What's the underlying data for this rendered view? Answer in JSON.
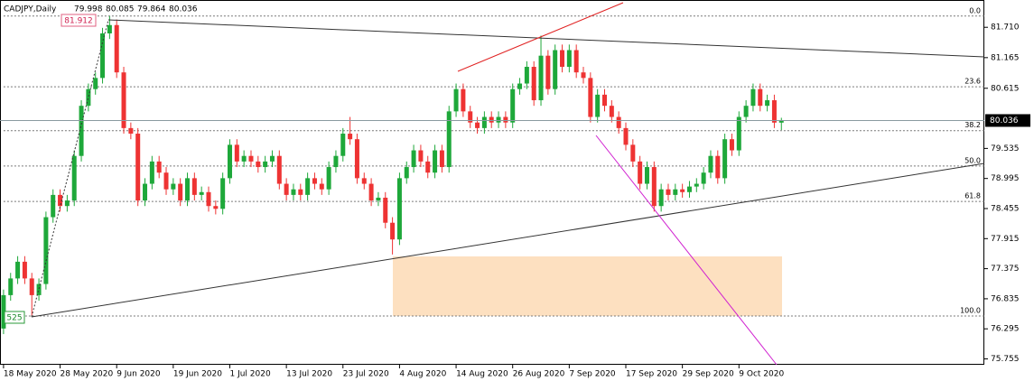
{
  "chart_data": {
    "type": "candlestick",
    "symbol": "CADJPY,Daily",
    "up_color": "#1ea83a",
    "down_color": "#ee3333",
    "open": [
      76.3,
      76.9,
      77.2,
      77.5,
      77.2,
      76.9,
      77.1,
      78.3,
      78.7,
      78.5,
      78.6,
      79.4,
      80.3,
      80.6,
      80.8,
      81.6,
      81.75,
      80.9,
      79.9,
      79.8,
      78.6,
      78.9,
      79.3,
      79.1,
      78.8,
      78.9,
      78.6,
      79.0,
      78.7,
      78.75,
      78.5,
      78.45,
      79.0,
      79.6,
      79.3,
      79.4,
      79.3,
      79.2,
      79.3,
      79.4,
      78.9,
      78.7,
      78.8,
      78.7,
      79.0,
      78.9,
      78.8,
      79.2,
      79.4,
      79.8,
      79.7,
      79.0,
      78.9,
      78.6,
      78.65,
      78.2,
      77.9,
      79.0,
      79.2,
      79.5,
      79.3,
      79.1,
      79.5,
      79.2,
      80.2,
      80.6,
      80.2,
      80.0,
      79.9,
      80.1,
      80.0,
      80.1,
      80.0,
      80.6,
      80.7,
      81.0,
      80.4,
      81.2,
      80.6,
      81.3,
      81.0,
      81.3,
      80.9,
      80.8,
      80.1,
      80.5,
      80.3,
      80.1,
      79.9,
      79.6,
      79.3,
      78.9,
      79.2,
      78.5,
      78.8,
      78.7,
      78.8,
      78.75,
      78.85,
      78.9,
      79.1,
      79.4,
      79.0,
      79.7,
      79.5,
      80.1,
      80.3,
      80.6,
      80.3,
      80.4,
      79.998
    ],
    "high": [
      77.0,
      77.3,
      77.6,
      77.6,
      77.3,
      77.2,
      78.4,
      78.8,
      78.8,
      78.7,
      79.5,
      80.4,
      80.7,
      80.9,
      81.7,
      81.912,
      81.85,
      81.0,
      80.0,
      79.9,
      79.0,
      79.4,
      79.4,
      79.2,
      79.0,
      79.0,
      79.1,
      79.1,
      78.85,
      78.85,
      78.6,
      79.1,
      79.7,
      79.7,
      79.5,
      79.5,
      79.4,
      79.4,
      79.5,
      79.5,
      79.0,
      78.9,
      78.9,
      79.1,
      79.1,
      79.0,
      79.3,
      79.5,
      79.9,
      80.1,
      79.8,
      79.1,
      79.0,
      78.75,
      78.75,
      78.3,
      79.1,
      79.3,
      79.6,
      79.6,
      79.4,
      79.6,
      79.6,
      80.3,
      80.7,
      80.7,
      80.3,
      80.1,
      80.2,
      80.2,
      80.2,
      80.2,
      80.7,
      80.8,
      81.1,
      81.1,
      81.56,
      81.3,
      81.4,
      81.4,
      81.4,
      81.4,
      81.0,
      80.9,
      80.6,
      80.6,
      80.4,
      80.2,
      80.0,
      79.7,
      79.4,
      79.3,
      79.3,
      78.9,
      78.9,
      78.9,
      78.9,
      78.95,
      79.0,
      79.2,
      79.5,
      79.5,
      79.8,
      79.8,
      80.2,
      80.4,
      80.7,
      80.7,
      80.5,
      80.5,
      80.085
    ],
    "low": [
      76.2,
      76.8,
      77.1,
      77.1,
      76.525,
      76.8,
      77.0,
      78.2,
      78.4,
      78.4,
      78.5,
      79.3,
      80.2,
      80.5,
      80.7,
      81.5,
      80.8,
      79.8,
      79.7,
      78.5,
      78.5,
      78.8,
      79.0,
      78.7,
      78.7,
      78.5,
      78.5,
      78.6,
      78.6,
      78.4,
      78.35,
      78.35,
      78.9,
      79.2,
      79.2,
      79.2,
      79.1,
      79.1,
      79.2,
      78.8,
      78.6,
      78.6,
      78.6,
      78.6,
      78.8,
      78.7,
      78.7,
      79.1,
      79.3,
      79.6,
      78.9,
      78.8,
      78.5,
      78.5,
      78.1,
      77.63,
      77.8,
      78.9,
      79.1,
      79.2,
      79.0,
      79.0,
      79.1,
      79.1,
      80.1,
      80.1,
      79.9,
      79.8,
      79.8,
      79.9,
      79.9,
      79.9,
      79.9,
      80.5,
      80.6,
      80.3,
      80.3,
      80.5,
      80.5,
      80.9,
      80.9,
      80.8,
      80.7,
      80.0,
      80.0,
      80.2,
      80.0,
      79.8,
      79.5,
      79.2,
      78.8,
      78.8,
      78.4,
      78.4,
      78.6,
      78.6,
      78.65,
      78.65,
      78.75,
      78.8,
      79.0,
      78.9,
      78.9,
      79.4,
      79.4,
      80.0,
      80.2,
      80.2,
      80.2,
      79.9,
      79.864
    ],
    "close": [
      76.9,
      77.2,
      77.5,
      77.2,
      76.9,
      77.1,
      78.3,
      78.7,
      78.5,
      78.6,
      79.4,
      80.3,
      80.6,
      80.8,
      81.6,
      81.75,
      80.9,
      79.9,
      79.8,
      78.6,
      78.9,
      79.3,
      79.1,
      78.8,
      78.9,
      78.6,
      79.0,
      78.7,
      78.75,
      78.5,
      78.45,
      79.0,
      79.6,
      79.3,
      79.4,
      79.3,
      79.2,
      79.3,
      79.4,
      78.9,
      78.7,
      78.8,
      78.7,
      79.0,
      78.9,
      78.8,
      79.2,
      79.4,
      79.8,
      79.7,
      79.0,
      78.9,
      78.6,
      78.65,
      78.2,
      77.9,
      79.0,
      79.2,
      79.5,
      79.3,
      79.1,
      79.5,
      79.2,
      80.2,
      80.6,
      80.2,
      80.0,
      79.9,
      80.1,
      80.0,
      80.1,
      80.0,
      80.6,
      80.7,
      81.0,
      80.4,
      81.2,
      80.6,
      81.3,
      81.0,
      81.3,
      80.9,
      80.8,
      80.1,
      80.5,
      80.3,
      80.1,
      79.9,
      79.6,
      79.3,
      78.9,
      79.2,
      78.5,
      78.8,
      78.7,
      78.8,
      78.75,
      78.85,
      78.9,
      79.1,
      79.4,
      79.0,
      79.7,
      79.5,
      80.1,
      80.3,
      80.6,
      80.3,
      80.4,
      79.998,
      80.036
    ],
    "xlim": [
      -0.5,
      138.7
    ],
    "ylim": [
      75.65,
      82.2
    ],
    "yticks": [
      {
        "value": 81.71,
        "label": "81.710"
      },
      81.165,
      80.615,
      79.535,
      78.995,
      78.455,
      77.915,
      77.375,
      76.835,
      76.295,
      75.755
    ],
    "xticks": [
      {
        "value": 0,
        "label": "18 May 2020"
      },
      {
        "value": 8,
        "label": "28 May 2020"
      },
      {
        "value": 16,
        "label": "9 Jun 2020"
      },
      {
        "value": 24,
        "label": "19 Jun 2020"
      },
      {
        "value": 32,
        "label": "1 Jul 2020"
      },
      {
        "value": 40,
        "label": "13 Jul 2020"
      },
      {
        "value": 48,
        "label": "23 Jul 2020"
      },
      {
        "value": 56,
        "label": "4 Aug 2020"
      },
      {
        "value": 64,
        "label": "14 Aug 2020"
      },
      {
        "value": 72,
        "label": "26 Aug 2020"
      },
      {
        "value": 80,
        "label": "7 Sep 2020"
      },
      {
        "value": 88,
        "label": "17 Sep 2020"
      },
      {
        "value": 96,
        "label": "29 Sep 2020"
      },
      {
        "value": 104,
        "label": "9 Oct 2020"
      }
    ],
    "fib_levels": [
      {
        "value": 81.912,
        "label": "0.0"
      },
      {
        "value": 80.641,
        "label": "23.6"
      },
      {
        "value": 79.854,
        "label": "38.2"
      },
      {
        "value": 79.219,
        "label": "50.0"
      },
      {
        "value": 78.583,
        "label": "61.8"
      },
      {
        "value": 76.525,
        "label": "100.0"
      }
    ],
    "annotations": [
      "81.912",
      "525"
    ]
  }
}
